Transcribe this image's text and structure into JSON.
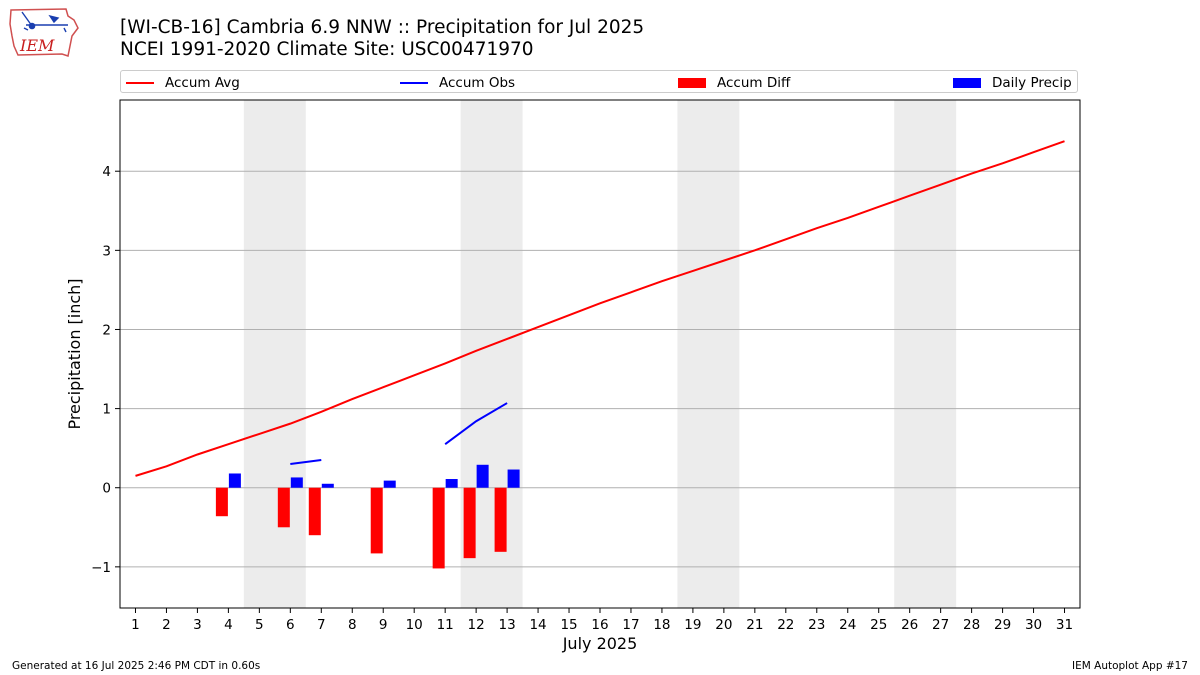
{
  "header": {
    "logo_text": "IEM",
    "title_line1": "[WI-CB-16] Cambria 6.9 NNW :: Precipitation for Jul 2025",
    "title_line2": "NCEI 1991-2020 Climate Site: USC00471970"
  },
  "legend": {
    "items": [
      {
        "label": "Accum Avg",
        "kind": "line",
        "color": "#ff0000"
      },
      {
        "label": "Accum Obs",
        "kind": "line",
        "color": "#0000ff"
      },
      {
        "label": "Accum Diff",
        "kind": "patch",
        "color": "#ff0000"
      },
      {
        "label": "Daily Precip",
        "kind": "patch",
        "color": "#0000ff"
      }
    ],
    "placement": "top, above plot, full width"
  },
  "footer": {
    "left": "Generated at 16 Jul 2025 2:46 PM CDT in 0.60s",
    "right": "IEM Autoplot App #17"
  },
  "chart_data": {
    "type": "line",
    "xlabel": "July 2025",
    "ylabel": "Precipitation [inch]",
    "xlim": [
      0.5,
      31.5
    ],
    "ylim": [
      -1.52,
      4.9
    ],
    "yticks": [
      -1,
      0,
      1,
      2,
      3,
      4
    ],
    "ytick_labels": [
      "−1",
      "0",
      "1",
      "2",
      "3",
      "4"
    ],
    "xticks": [
      1,
      2,
      3,
      4,
      5,
      6,
      7,
      8,
      9,
      10,
      11,
      12,
      13,
      14,
      15,
      16,
      17,
      18,
      19,
      20,
      21,
      22,
      23,
      24,
      25,
      26,
      27,
      28,
      29,
      30,
      31
    ],
    "grid": "horizontal",
    "weekend_shading": [
      [
        4.5,
        6.5
      ],
      [
        11.5,
        13.5
      ],
      [
        18.5,
        20.5
      ],
      [
        25.5,
        27.5
      ]
    ],
    "colors": {
      "avg": "#ff0000",
      "obs": "#0000ff",
      "diff": "#ff0000",
      "daily": "#0000ff",
      "shade": "#ececec",
      "grid": "#b0b0b0"
    },
    "accum_avg": {
      "name": "Accum Avg",
      "x": [
        1,
        2,
        3,
        4,
        5,
        6,
        7,
        8,
        9,
        10,
        11,
        12,
        13,
        14,
        15,
        16,
        17,
        18,
        19,
        20,
        21,
        22,
        23,
        24,
        25,
        26,
        27,
        28,
        29,
        30,
        31
      ],
      "y": [
        0.15,
        0.27,
        0.42,
        0.55,
        0.68,
        0.81,
        0.96,
        1.12,
        1.27,
        1.42,
        1.57,
        1.73,
        1.88,
        2.03,
        2.18,
        2.33,
        2.47,
        2.61,
        2.74,
        2.87,
        3.0,
        3.14,
        3.28,
        3.41,
        3.55,
        3.69,
        3.83,
        3.97,
        4.1,
        4.24,
        4.38
      ]
    },
    "accum_obs": {
      "name": "Accum Obs",
      "segments": [
        {
          "x": [
            6,
            7
          ],
          "y": [
            0.3,
            0.35
          ]
        },
        {
          "x": [
            11,
            12,
            13
          ],
          "y": [
            0.55,
            0.84,
            1.07
          ]
        }
      ]
    },
    "accum_diff": {
      "name": "Accum Diff",
      "x": [
        4,
        6,
        7,
        9,
        11,
        12,
        13
      ],
      "y": [
        -0.36,
        -0.5,
        -0.6,
        -0.83,
        -1.02,
        -0.89,
        -0.81
      ]
    },
    "daily_precip": {
      "name": "Daily Precip",
      "x": [
        4,
        6,
        7,
        9,
        11,
        12,
        13
      ],
      "y": [
        0.18,
        0.13,
        0.05,
        0.09,
        0.11,
        0.29,
        0.23
      ]
    }
  }
}
